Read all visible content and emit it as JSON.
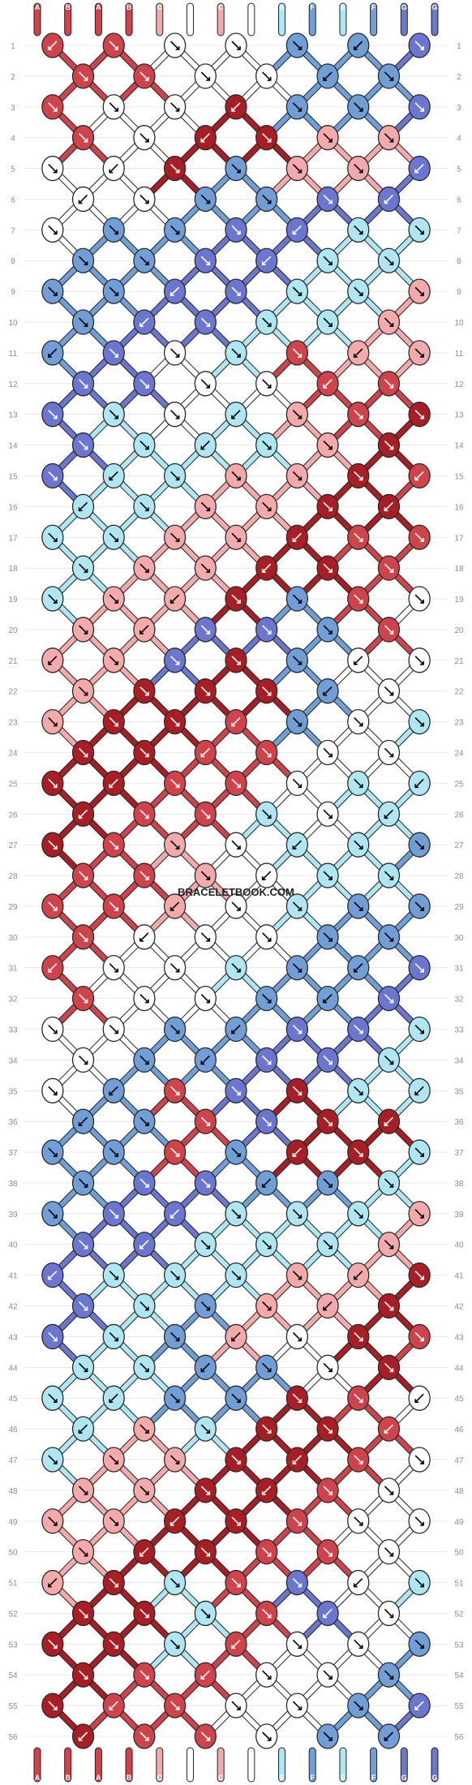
{
  "site": {
    "watermark": "BRACELETBOOK.COM"
  },
  "colors": {
    "A": "#d0434b",
    "B": "#d0434b",
    "C": "#f4aaaa",
    "D": "#ffffff",
    "E": "#aee6f2",
    "F": "#6f9fd6",
    "G": "#6a76cf",
    "dark_red": "#a81e24",
    "outline": "#2a2a2a",
    "grid": "#d9d9d9"
  },
  "strings_top": [
    "A",
    "B",
    "A",
    "B",
    "C",
    "D",
    "C",
    "D",
    "E",
    "F",
    "E",
    "F",
    "G",
    "G"
  ],
  "strings_bottom": [
    "A",
    "B",
    "A",
    "B",
    "C",
    "D",
    "C",
    "D",
    "E",
    "F",
    "E",
    "F",
    "G",
    "G"
  ],
  "rows": [
    "1",
    "2",
    "3",
    "4",
    "5",
    "6",
    "7",
    "8",
    "9",
    "10",
    "11",
    "12",
    "13",
    "14",
    "15",
    "16",
    "17",
    "18",
    "19",
    "20",
    "21",
    "22",
    "23",
    "24",
    "25",
    "26",
    "27",
    "28",
    "29",
    "30",
    "31",
    "32",
    "33",
    "34",
    "35",
    "36",
    "37",
    "38",
    "39",
    "40",
    "41",
    "42",
    "43",
    "44",
    "45",
    "46",
    "47",
    "48",
    "49",
    "50",
    "51",
    "52",
    "53",
    "54",
    "55",
    "56"
  ],
  "knot_palette": [
    "#d0434b",
    "#a81e24",
    "#f4aaaa",
    "#ffffff",
    "#aee6f2",
    "#6f9fd6",
    "#6a76cf"
  ],
  "knot_matrix": [
    [
      0,
      0,
      3,
      3,
      5,
      5,
      6
    ],
    [
      0,
      0,
      3,
      3,
      5,
      5,
      6
    ],
    [
      0,
      3,
      3,
      1,
      5,
      5,
      6
    ],
    [
      0,
      3,
      1,
      1,
      2,
      2,
      6
    ],
    [
      3,
      3,
      1,
      5,
      2,
      2,
      6
    ],
    [
      3,
      3,
      5,
      5,
      6,
      6,
      4
    ],
    [
      3,
      5,
      5,
      6,
      6,
      4,
      4
    ],
    [
      5,
      5,
      6,
      6,
      4,
      4,
      2
    ],
    [
      5,
      5,
      6,
      6,
      4,
      4,
      2
    ],
    [
      5,
      6,
      6,
      4,
      4,
      2,
      2
    ],
    [
      5,
      6,
      3,
      4,
      0,
      2,
      2
    ],
    [
      6,
      6,
      3,
      3,
      0,
      0,
      2
    ],
    [
      6,
      4,
      3,
      4,
      2,
      0,
      1
    ],
    [
      6,
      4,
      4,
      4,
      2,
      1,
      1
    ],
    [
      6,
      4,
      4,
      2,
      2,
      1,
      0
    ],
    [
      4,
      4,
      2,
      2,
      1,
      1,
      0
    ],
    [
      4,
      4,
      2,
      2,
      1,
      0,
      0
    ],
    [
      4,
      2,
      2,
      1,
      1,
      0,
      3
    ],
    [
      4,
      2,
      2,
      1,
      5,
      0,
      3
    ],
    [
      2,
      2,
      6,
      6,
      5,
      0,
      3
    ],
    [
      2,
      2,
      6,
      1,
      5,
      3,
      3
    ],
    [
      2,
      1,
      1,
      1,
      5,
      3,
      3
    ],
    [
      2,
      1,
      1,
      0,
      5,
      3,
      4
    ],
    [
      1,
      1,
      0,
      0,
      3,
      3,
      4
    ],
    [
      1,
      1,
      0,
      0,
      3,
      4,
      4
    ],
    [
      1,
      0,
      0,
      4,
      3,
      4,
      5
    ],
    [
      1,
      0,
      2,
      3,
      4,
      4,
      5
    ],
    [
      0,
      0,
      2,
      3,
      4,
      4,
      5
    ],
    [
      0,
      0,
      2,
      3,
      4,
      5,
      5
    ],
    [
      0,
      3,
      3,
      3,
      5,
      5,
      6
    ],
    [
      0,
      3,
      3,
      4,
      5,
      5,
      6
    ],
    [
      0,
      3,
      3,
      5,
      5,
      6,
      6
    ],
    [
      3,
      3,
      5,
      5,
      6,
      6,
      4
    ],
    [
      3,
      5,
      5,
      6,
      6,
      4,
      4
    ],
    [
      3,
      5,
      0,
      6,
      1,
      4,
      4
    ],
    [
      5,
      5,
      0,
      6,
      1,
      1,
      4
    ],
    [
      5,
      5,
      0,
      5,
      1,
      1,
      4
    ],
    [
      5,
      6,
      6,
      5,
      5,
      4,
      2
    ],
    [
      5,
      6,
      6,
      4,
      4,
      4,
      2
    ],
    [
      6,
      6,
      4,
      4,
      4,
      2,
      1
    ],
    [
      6,
      4,
      4,
      4,
      2,
      2,
      1
    ],
    [
      6,
      4,
      5,
      2,
      2,
      1,
      0
    ],
    [
      6,
      4,
      5,
      2,
      3,
      1,
      0
    ],
    [
      4,
      4,
      5,
      5,
      3,
      1,
      0
    ],
    [
      4,
      4,
      5,
      5,
      1,
      0,
      3
    ],
    [
      4,
      2,
      4,
      1,
      1,
      0,
      3
    ],
    [
      4,
      2,
      2,
      1,
      1,
      0,
      3
    ],
    [
      2,
      2,
      1,
      1,
      0,
      3,
      3
    ],
    [
      2,
      2,
      1,
      1,
      0,
      3,
      3
    ],
    [
      2,
      1,
      1,
      0,
      0,
      3,
      4
    ],
    [
      2,
      1,
      4,
      0,
      6,
      3,
      4
    ],
    [
      1,
      1,
      4,
      0,
      6,
      3,
      5
    ],
    [
      1,
      1,
      4,
      0,
      3,
      3,
      5
    ],
    [
      1,
      0,
      0,
      3,
      3,
      5,
      5
    ],
    [
      1,
      0,
      0,
      3,
      3,
      5,
      6
    ],
    [
      1,
      0,
      0,
      3,
      5,
      5,
      6
    ]
  ]
}
